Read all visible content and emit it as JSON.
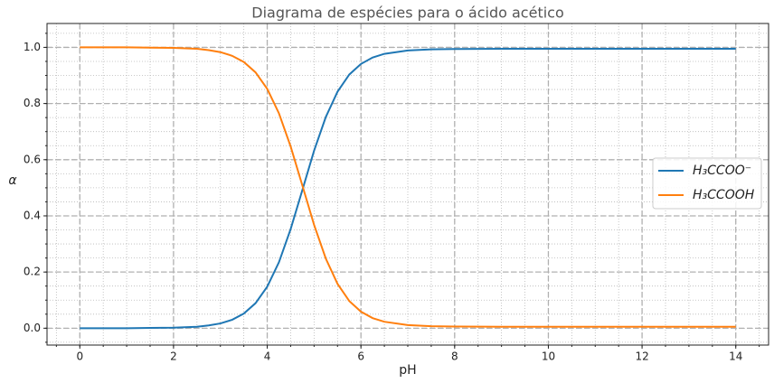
{
  "chart_data": {
    "type": "line",
    "title": "Diagrama de espécies para o ácido acético",
    "x_label": "pH",
    "y_label": "α",
    "x": [
      0,
      0.5,
      1,
      1.5,
      2,
      2.5,
      2.75,
      3,
      3.25,
      3.5,
      3.75,
      4,
      4.25,
      4.5,
      4.75,
      5,
      5.25,
      5.5,
      5.75,
      6,
      6.25,
      6.5,
      7,
      7.5,
      8,
      9,
      10,
      11,
      12,
      13,
      14
    ],
    "series": [
      {
        "name": "H₃CCOO⁻",
        "color": "#1f77b4",
        "values": [
          0,
          0,
          0,
          0.001,
          0.002,
          0.005,
          0.01,
          0.017,
          0.03,
          0.052,
          0.089,
          0.148,
          0.235,
          0.353,
          0.492,
          0.632,
          0.752,
          0.842,
          0.903,
          0.941,
          0.964,
          0.977,
          0.989,
          0.993,
          0.994,
          0.995,
          0.995,
          0.995,
          0.995,
          0.995,
          0.995
        ]
      },
      {
        "name": "H₃CCOOH",
        "color": "#ff7f0e",
        "values": [
          1,
          1,
          1,
          0.999,
          0.998,
          0.995,
          0.99,
          0.983,
          0.97,
          0.948,
          0.911,
          0.852,
          0.765,
          0.647,
          0.508,
          0.368,
          0.248,
          0.158,
          0.097,
          0.059,
          0.036,
          0.023,
          0.011,
          0.007,
          0.006,
          0.005,
          0.005,
          0.005,
          0.005,
          0.005,
          0.005
        ]
      }
    ],
    "xlim": [
      -0.7,
      14.7
    ],
    "ylim": [
      -0.06,
      1.085
    ],
    "xticks": [
      0,
      2,
      4,
      6,
      8,
      10,
      12,
      14
    ],
    "yticks": [
      {
        "value": 0,
        "label": "0.0"
      },
      {
        "value": 0.2,
        "label": "0.2"
      },
      {
        "value": 0.4,
        "label": "0.4"
      },
      {
        "value": 0.6,
        "label": "0.6"
      },
      {
        "value": 0.8,
        "label": "0.8"
      },
      {
        "value": 1,
        "label": "1.0"
      }
    ],
    "grid": true,
    "minor_grid": true,
    "legend": "right"
  }
}
